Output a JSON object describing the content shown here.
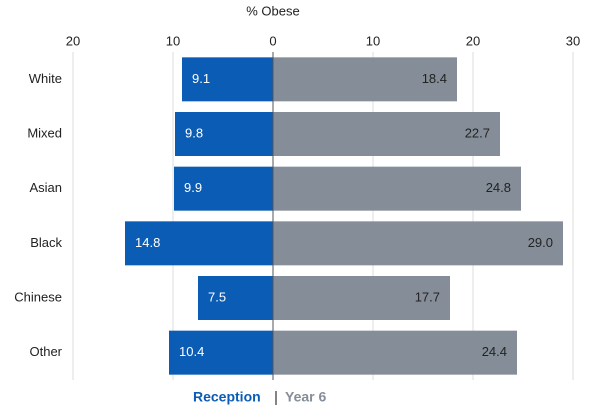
{
  "chart_data": {
    "type": "butterfly-bar",
    "title": "% Obese",
    "categories": [
      "White",
      "Mixed",
      "Asian",
      "Black",
      "Chinese",
      "Other"
    ],
    "series": [
      {
        "name": "Reception",
        "color": "#0b5cb5",
        "values": [
          -9.1,
          -9.8,
          -9.9,
          -14.8,
          -7.5,
          -10.4
        ],
        "value_labels": [
          "9.1",
          "9.8",
          "9.9",
          "14.8",
          "7.5",
          "10.4"
        ]
      },
      {
        "name": "Year 6",
        "color": "#858e98",
        "values": [
          18.4,
          22.7,
          24.8,
          29.0,
          17.7,
          24.4
        ],
        "value_labels": [
          "18.4",
          "22.7",
          "24.8",
          "29.0",
          "17.7",
          "24.4"
        ]
      }
    ],
    "xlim": [
      -20,
      30
    ],
    "xticks": [
      {
        "value": -20,
        "label": "20"
      },
      {
        "value": -10,
        "label": "10"
      },
      0,
      10,
      20,
      30
    ],
    "grid": true
  }
}
